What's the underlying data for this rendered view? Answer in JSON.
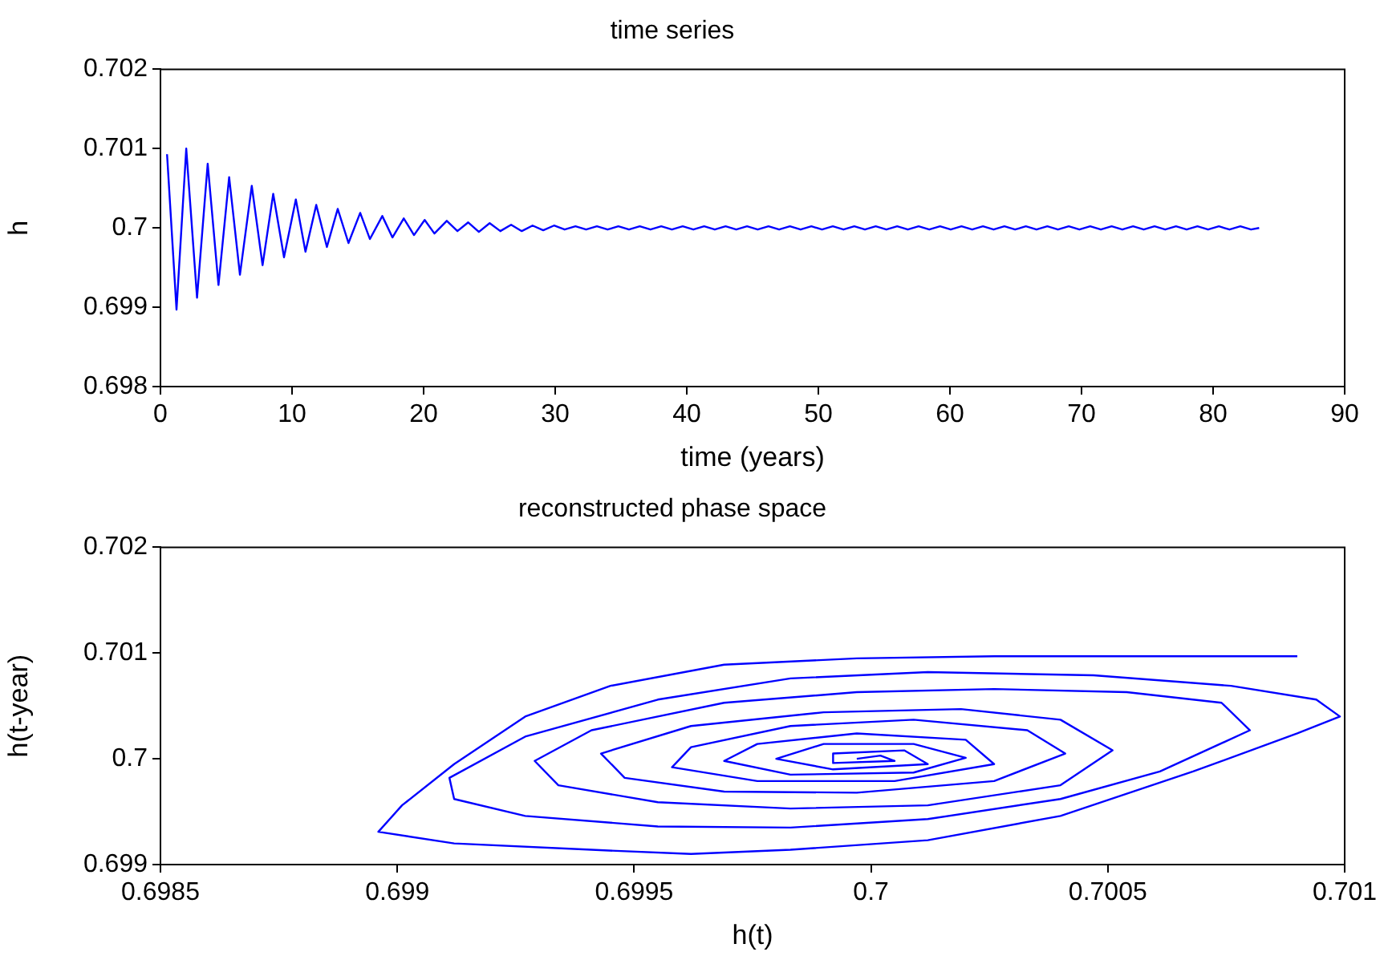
{
  "chart_data": [
    {
      "type": "line",
      "title": "time series",
      "xlabel": "time (years)",
      "ylabel": "h",
      "grid": false,
      "legend": false,
      "marker": "none",
      "line_style": "solid",
      "xlim": [
        0,
        90
      ],
      "ylim": [
        0.698,
        0.702
      ],
      "xticks": [
        0,
        10,
        20,
        30,
        40,
        50,
        60,
        70,
        80,
        90
      ],
      "yticks": [
        0.698,
        0.699,
        0.7,
        0.701,
        0.702
      ],
      "x": [
        0.5,
        1.22,
        1.96,
        2.78,
        3.59,
        4.41,
        5.22,
        6.04,
        6.94,
        7.76,
        8.57,
        9.39,
        10.29,
        11.02,
        11.84,
        12.65,
        13.47,
        14.29,
        15.18,
        15.92,
        16.86,
        17.63,
        18.49,
        19.27,
        20.08,
        20.82,
        21.76,
        22.57,
        23.39,
        24.2,
        25.02,
        25.83,
        26.65,
        27.46,
        28.28,
        29.09,
        29.91,
        30.72,
        31.54,
        32.35,
        33.17,
        33.98,
        34.8,
        35.61,
        36.43,
        37.24,
        38.06,
        38.87,
        39.69,
        40.5,
        41.32,
        42.13,
        42.95,
        43.76,
        44.58,
        45.39,
        46.21,
        47.02,
        47.84,
        48.65,
        49.47,
        50.28,
        51.1,
        51.91,
        52.73,
        53.54,
        54.36,
        55.17,
        55.99,
        56.8,
        57.62,
        58.43,
        59.25,
        60.06,
        60.88,
        61.69,
        62.51,
        63.32,
        64.14,
        64.95,
        65.77,
        66.58,
        67.4,
        68.21,
        69.03,
        69.84,
        70.66,
        71.47,
        72.29,
        73.1,
        73.92,
        74.73,
        75.55,
        76.36,
        77.18,
        77.99,
        78.81,
        79.62,
        80.44,
        81.25,
        82.07,
        82.88,
        83.5
      ],
      "series": [
        {
          "color": "#0000ff",
          "values": [
            0.70093,
            0.69897,
            0.701,
            0.69912,
            0.70081,
            0.69928,
            0.70064,
            0.69941,
            0.70053,
            0.69953,
            0.70043,
            0.69963,
            0.70036,
            0.6997,
            0.70029,
            0.69976,
            0.70024,
            0.69981,
            0.70019,
            0.69986,
            0.70015,
            0.69988,
            0.70012,
            0.69991,
            0.7001,
            0.69993,
            0.70009,
            0.69996,
            0.70007,
            0.69995,
            0.70006,
            0.69996,
            0.70004,
            0.69996,
            0.70003,
            0.69997,
            0.70003,
            0.69998,
            0.70002,
            0.69998,
            0.70002,
            0.69998,
            0.70002,
            0.69998,
            0.70002,
            0.69998,
            0.70002,
            0.69998,
            0.70002,
            0.69998,
            0.70002,
            0.69998,
            0.70002,
            0.69998,
            0.70002,
            0.69998,
            0.70002,
            0.69998,
            0.70002,
            0.69998,
            0.70002,
            0.69998,
            0.70002,
            0.69998,
            0.70002,
            0.69998,
            0.70002,
            0.69998,
            0.70002,
            0.69998,
            0.70002,
            0.69998,
            0.70002,
            0.69998,
            0.70002,
            0.69998,
            0.70002,
            0.69998,
            0.70002,
            0.69998,
            0.70002,
            0.69998,
            0.70002,
            0.69998,
            0.70002,
            0.69998,
            0.70002,
            0.69998,
            0.70002,
            0.69998,
            0.70002,
            0.69998,
            0.70002,
            0.69998,
            0.70002,
            0.69998,
            0.70002,
            0.69998,
            0.70002,
            0.69998,
            0.70002,
            0.69998,
            0.7
          ]
        }
      ]
    },
    {
      "type": "line",
      "title": "reconstructed phase space",
      "xlabel": "h(t)",
      "ylabel": "h(t-year)",
      "grid": false,
      "legend": false,
      "marker": "none",
      "line_style": "solid",
      "xlim": [
        0.6985,
        0.701
      ],
      "ylim": [
        0.699,
        0.702
      ],
      "xticks": [
        0.6985,
        0.699,
        0.6995,
        0.7,
        0.7005,
        0.701
      ],
      "yticks": [
        0.699,
        0.7,
        0.701,
        0.702
      ],
      "x": [
        0.7009,
        0.70026,
        0.69997,
        0.69969,
        0.69945,
        0.69927,
        0.69912,
        0.69901,
        0.69896,
        0.69912,
        0.69941,
        0.69962,
        0.69983,
        0.70012,
        0.7004,
        0.70068,
        0.7009,
        0.70099,
        0.70094,
        0.70076,
        0.70047,
        0.70012,
        0.69983,
        0.69955,
        0.69927,
        0.69911,
        0.69912,
        0.69927,
        0.69955,
        0.69983,
        0.70012,
        0.7004,
        0.70061,
        0.7008,
        0.70074,
        0.70054,
        0.70026,
        0.69997,
        0.69969,
        0.69941,
        0.69929,
        0.69934,
        0.69955,
        0.69983,
        0.70012,
        0.7004,
        0.70051,
        0.7004,
        0.70019,
        0.6999,
        0.69962,
        0.69943,
        0.69948,
        0.69969,
        0.69997,
        0.70026,
        0.70041,
        0.70033,
        0.70009,
        0.69983,
        0.69962,
        0.69958,
        0.69976,
        0.70005,
        0.70026,
        0.7002,
        0.69997,
        0.69976,
        0.69969,
        0.69983,
        0.70009,
        0.7002,
        0.70009,
        0.6999,
        0.6998,
        0.69992,
        0.70012,
        0.70007,
        0.69992,
        0.69992,
        0.70005,
        0.70002,
        0.69997
      ],
      "series": [
        {
          "color": "#0000ff",
          "values": [
            0.70097,
            0.70097,
            0.70095,
            0.70089,
            0.70069,
            0.7004,
            0.69995,
            0.69956,
            0.69931,
            0.6992,
            0.69914,
            0.6991,
            0.69914,
            0.69923,
            0.69946,
            0.69988,
            0.70024,
            0.7004,
            0.70056,
            0.70069,
            0.70079,
            0.70082,
            0.70076,
            0.70056,
            0.70021,
            0.69982,
            0.69962,
            0.69946,
            0.69936,
            0.69935,
            0.69943,
            0.69962,
            0.69988,
            0.70027,
            0.70053,
            0.70063,
            0.70066,
            0.70063,
            0.70053,
            0.70027,
            0.69998,
            0.69975,
            0.69959,
            0.69953,
            0.69956,
            0.69975,
            0.70008,
            0.70037,
            0.70047,
            0.70044,
            0.70031,
            0.70005,
            0.69982,
            0.69969,
            0.69968,
            0.69979,
            0.70005,
            0.70027,
            0.70037,
            0.70031,
            0.70011,
            0.69992,
            0.69979,
            0.69979,
            0.69995,
            0.70018,
            0.70024,
            0.70014,
            0.69998,
            0.69985,
            0.69987,
            0.70001,
            0.70014,
            0.70014,
            0.7,
            0.6999,
            0.69995,
            0.70008,
            0.70005,
            0.69996,
            0.69998,
            0.70003,
            0.7
          ]
        }
      ]
    }
  ]
}
